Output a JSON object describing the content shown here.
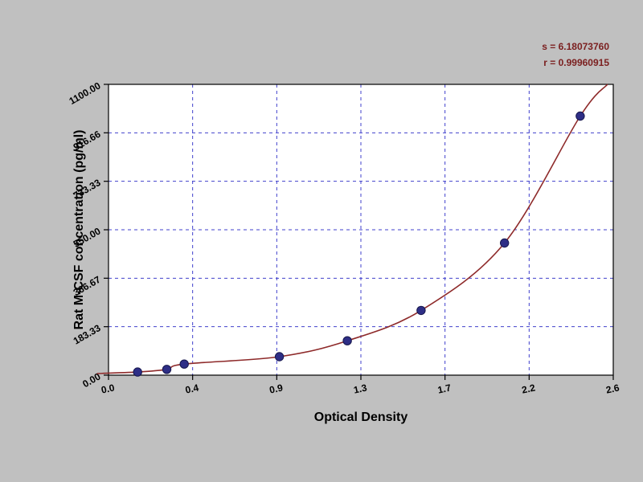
{
  "page": {
    "background": "#c0c0c0"
  },
  "annotations": {
    "line1": "s = 6.18073760",
    "line2": "r = 0.99960915",
    "color": "#7b2020"
  },
  "chart_data": {
    "type": "scatter",
    "subtype": "standard-curve-with-fitted-line",
    "title": "",
    "xlabel": "Optical Density",
    "ylabel": "Rat M-CSF concentration (pg/ml)",
    "xlim": [
      0,
      2.6
    ],
    "ylim": [
      0,
      1100
    ],
    "grid": true,
    "legend": "none",
    "x_ticks": [
      0,
      0.4333,
      0.8667,
      1.3,
      1.7333,
      2.1667,
      2.6
    ],
    "x_tick_labels": [
      "0.0",
      "0.4",
      "0.9",
      "1.3",
      "1.7",
      "2.2",
      "2.6"
    ],
    "y_ticks": [
      0,
      183.33,
      366.67,
      550.0,
      733.33,
      916.66,
      1100.0
    ],
    "y_tick_labels": [
      "0.00",
      "183.33",
      "366.67",
      "550.00",
      "733.33",
      "916.66",
      "1100.00"
    ],
    "points": [
      [
        0.15,
        12
      ],
      [
        0.3,
        22
      ],
      [
        0.39,
        42
      ],
      [
        0.88,
        70
      ],
      [
        1.23,
        130
      ],
      [
        1.61,
        245
      ],
      [
        2.04,
        500
      ],
      [
        2.43,
        980
      ]
    ],
    "curve": {
      "description": "monotone exponential-like fit through standard points",
      "start_anchor": [
        -0.06,
        6
      ],
      "end_anchor": [
        2.57,
        1100
      ]
    },
    "colors": {
      "plot_bg": "#ffffff",
      "grid": "#4040cc",
      "axis": "#000000",
      "curve": "#8e2a2a",
      "point": "#2e2e86",
      "point_edge": "#17174d"
    }
  }
}
